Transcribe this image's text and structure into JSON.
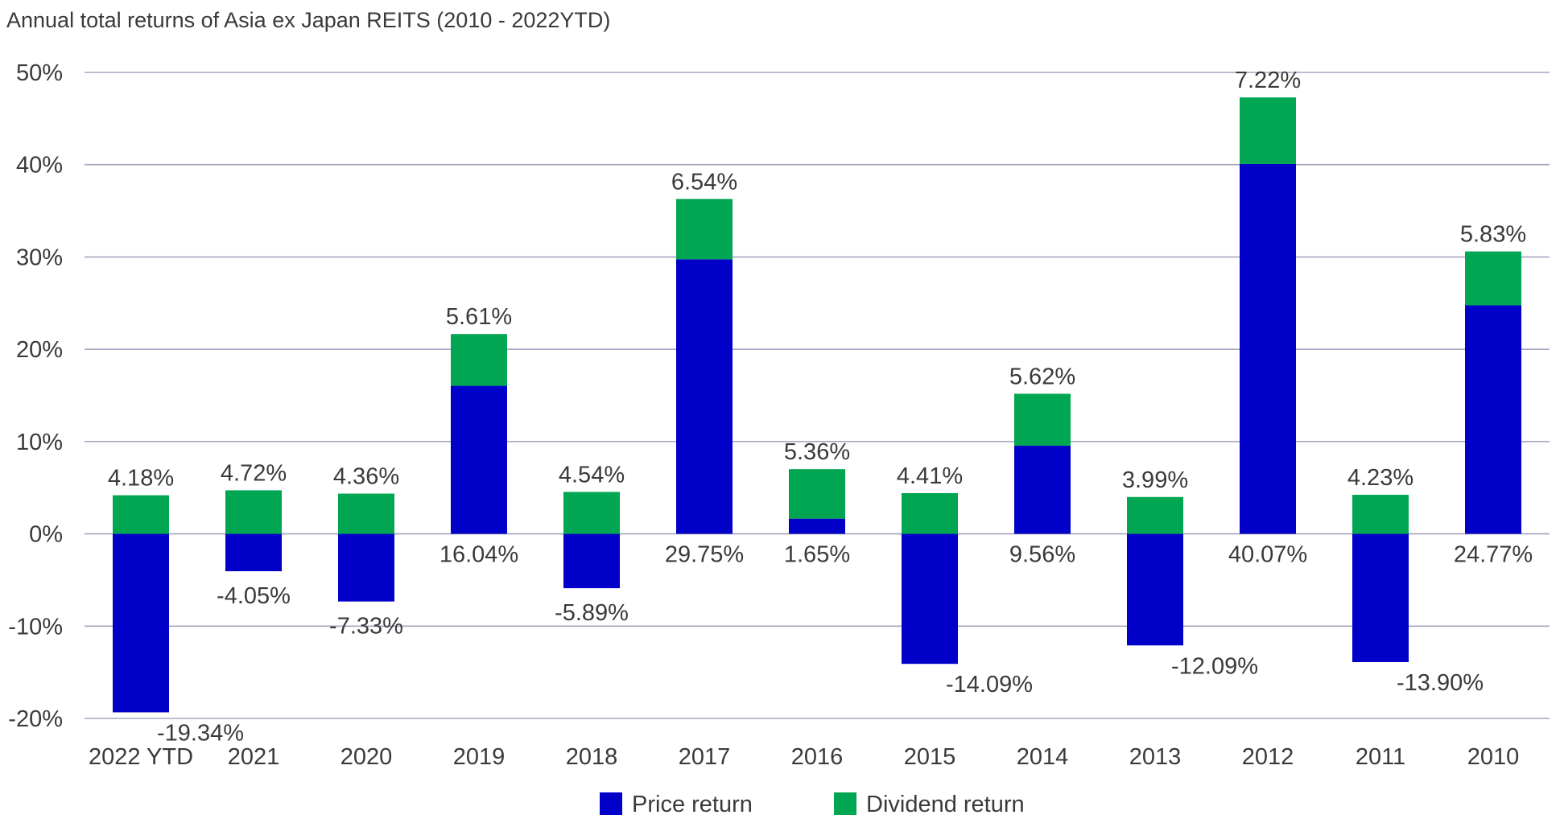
{
  "chart_data": {
    "type": "bar",
    "stacked": true,
    "title": "Annual total returns of Asia ex Japan REITS (2010 - 2022YTD)",
    "categories": [
      "2022 YTD",
      "2021",
      "2020",
      "2019",
      "2018",
      "2017",
      "2016",
      "2015",
      "2014",
      "2013",
      "2012",
      "2011",
      "2010"
    ],
    "series": [
      {
        "name": "Price return",
        "color": "#0000C8",
        "values": [
          -19.34,
          -4.05,
          -7.33,
          16.04,
          -5.89,
          29.75,
          1.65,
          -14.09,
          9.56,
          -12.09,
          40.07,
          -13.9,
          24.77
        ],
        "labels": [
          "-19.34%",
          "-4.05%",
          "-7.33%",
          "16.04%",
          "-5.89%",
          "29.75%",
          "1.65%",
          "-14.09%",
          "9.56%",
          "-12.09%",
          "40.07%",
          "-13.90%",
          "24.77%"
        ]
      },
      {
        "name": "Dividend return",
        "color": "#00A651",
        "values": [
          4.18,
          4.72,
          4.36,
          5.61,
          4.54,
          6.54,
          5.36,
          4.41,
          5.62,
          3.99,
          7.22,
          4.23,
          5.83
        ],
        "labels": [
          "4.18%",
          "4.72%",
          "4.36%",
          "5.61%",
          "4.54%",
          "6.54%",
          "5.36%",
          "4.41%",
          "5.62%",
          "3.99%",
          "7.22%",
          "4.23%",
          "5.83%"
        ]
      }
    ],
    "yticks": [
      -20,
      -10,
      0,
      10,
      20,
      30,
      40,
      50
    ],
    "ytick_labels": [
      "-20%",
      "-10%",
      "0%",
      "10%",
      "20%",
      "30%",
      "40%",
      "50%"
    ],
    "ylim": [
      -20,
      50
    ],
    "grid": true,
    "legend_position": "bottom-center"
  }
}
